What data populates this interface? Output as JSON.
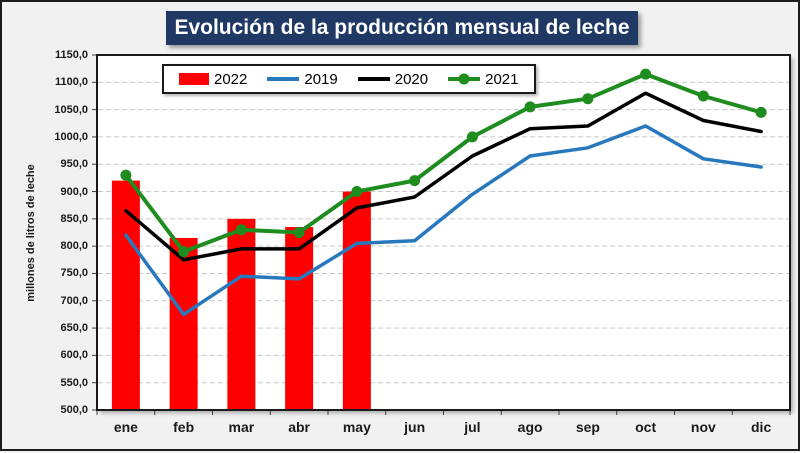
{
  "title": "Evolución de la producción mensual de leche",
  "y_axis_title": "millones de litros de leche",
  "colors": {
    "title_bg": "#1f3864",
    "title_text": "#ffffff",
    "bar_2022": "#ff0000",
    "line_2019": "#2878be",
    "line_2020": "#000000",
    "line_2021": "#1e8c1e",
    "gridline": "#c9c9c9",
    "plot_border": "#1a1a1a",
    "canvas_bg": "#f1f1f1"
  },
  "legend": [
    {
      "label": "2022",
      "type": "bar",
      "color": "#ff0000"
    },
    {
      "label": "2019",
      "type": "line",
      "color": "#2878be"
    },
    {
      "label": "2020",
      "type": "line",
      "color": "#000000"
    },
    {
      "label": "2021",
      "type": "line-marker",
      "color": "#1e8c1e"
    }
  ],
  "chart_data": {
    "type": "bar+line combo",
    "title": "Evolución de la producción mensual de leche",
    "ylabel": "millones de litros de leche",
    "xlabel": "",
    "categories": [
      "ene",
      "feb",
      "mar",
      "abr",
      "may",
      "jun",
      "jul",
      "ago",
      "sep",
      "oct",
      "nov",
      "dic"
    ],
    "ylim": [
      500,
      1150
    ],
    "ytick_step": 50,
    "ytick_labels": [
      "1150,0",
      "1100,0",
      "1050,0",
      "1000,0",
      "950,0",
      "900,0",
      "850,0",
      "800,0",
      "750,0",
      "700,0",
      "650,0",
      "600,0",
      "550,0",
      "500,0"
    ],
    "grid": "horizontal dashed",
    "legend_position": "top-left inside plot",
    "bar_series": {
      "name": "2022",
      "color": "#ff0000",
      "values": [
        920,
        815,
        850,
        835,
        900,
        null,
        null,
        null,
        null,
        null,
        null,
        null
      ]
    },
    "line_series": [
      {
        "name": "2019",
        "color": "#2878be",
        "marker": false,
        "width": 3.5,
        "values": [
          820,
          675,
          745,
          740,
          805,
          810,
          895,
          965,
          980,
          1020,
          960,
          945
        ]
      },
      {
        "name": "2020",
        "color": "#000000",
        "marker": false,
        "width": 3.5,
        "values": [
          865,
          775,
          795,
          795,
          870,
          890,
          965,
          1015,
          1020,
          1080,
          1030,
          1010
        ]
      },
      {
        "name": "2021",
        "color": "#1e8c1e",
        "marker": true,
        "width": 4,
        "values": [
          930,
          790,
          830,
          825,
          900,
          920,
          1000,
          1055,
          1070,
          1115,
          1075,
          1045
        ]
      }
    ]
  }
}
